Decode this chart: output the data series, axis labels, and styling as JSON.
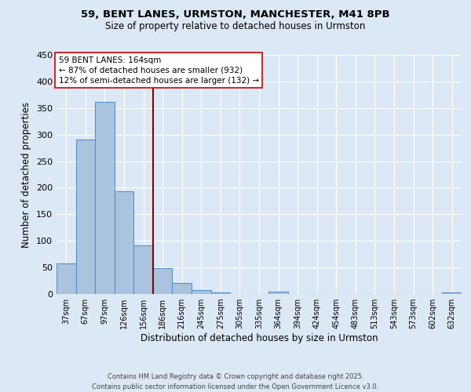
{
  "title_line1": "59, BENT LANES, URMSTON, MANCHESTER, M41 8PB",
  "title_line2": "Size of property relative to detached houses in Urmston",
  "xlabel": "Distribution of detached houses by size in Urmston",
  "ylabel": "Number of detached properties",
  "bar_labels": [
    "37sqm",
    "67sqm",
    "97sqm",
    "126sqm",
    "156sqm",
    "186sqm",
    "216sqm",
    "245sqm",
    "275sqm",
    "305sqm",
    "335sqm",
    "364sqm",
    "394sqm",
    "424sqm",
    "454sqm",
    "483sqm",
    "513sqm",
    "543sqm",
    "573sqm",
    "602sqm",
    "632sqm"
  ],
  "bar_values": [
    57,
    291,
    362,
    193,
    92,
    49,
    20,
    8,
    3,
    0,
    0,
    4,
    0,
    0,
    0,
    0,
    0,
    0,
    0,
    0,
    3
  ],
  "bar_color": "#aac4e0",
  "bar_edge_color": "#5590c8",
  "background_color": "#dce8f5",
  "grid_color": "#ffffff",
  "vline_x": 4.5,
  "vline_color": "#8b0000",
  "annotation_text": "59 BENT LANES: 164sqm\n← 87% of detached houses are smaller (932)\n12% of semi-detached houses are larger (132) →",
  "annotation_box_color": "#ffffff",
  "annotation_box_edge": "#cc0000",
  "footnote_line1": "Contains HM Land Registry data © Crown copyright and database right 2025.",
  "footnote_line2": "Contains public sector information licensed under the Open Government Licence v3.0.",
  "ylim": [
    0,
    450
  ],
  "yticks": [
    0,
    50,
    100,
    150,
    200,
    250,
    300,
    350,
    400,
    450
  ]
}
